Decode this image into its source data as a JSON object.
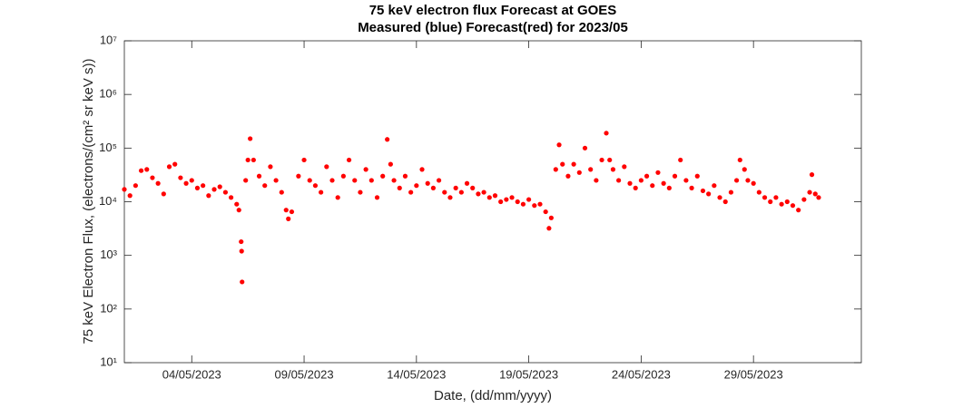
{
  "chart_data": {
    "type": "scatter",
    "title": "75 keV electron flux Forecast at GOES",
    "subtitle": "Measured (blue) Forecast(red) for 2023/05",
    "x_label": "Date, (dd/mm/yyyy)",
    "y_label": "75 keV Electron Flux, (electrons/(cm² sr keV s))",
    "color": "#ff0000",
    "log_y": true,
    "grid": false,
    "xlim": [
      1,
      33.8
    ],
    "xticks": [
      {
        "value": 4,
        "label": "04/05/2023"
      },
      {
        "value": 9,
        "label": "09/05/2023"
      },
      {
        "value": 14,
        "label": "14/05/2023"
      },
      {
        "value": 19,
        "label": "19/05/2023"
      },
      {
        "value": 24,
        "label": "24/05/2023"
      },
      {
        "value": 29,
        "label": "29/05/2023"
      }
    ],
    "ylim": [
      10,
      10000000
    ],
    "yticks": [
      {
        "value": 10,
        "label": "10¹"
      },
      {
        "value": 100,
        "label": "10²"
      },
      {
        "value": 1000,
        "label": "10³"
      },
      {
        "value": 10000,
        "label": "10⁴"
      },
      {
        "value": 100000,
        "label": "10⁵"
      },
      {
        "value": 1000000,
        "label": "10⁶"
      },
      {
        "value": 10000000,
        "label": "10⁷"
      }
    ],
    "x": [
      1.0,
      1.25,
      1.5,
      1.75,
      2.0,
      2.25,
      2.5,
      2.75,
      3.0,
      3.25,
      3.5,
      3.75,
      4.0,
      4.25,
      4.5,
      4.75,
      5.0,
      5.25,
      5.5,
      5.75,
      6.0,
      6.1,
      6.2,
      6.22,
      6.24,
      6.4,
      6.5,
      6.6,
      6.75,
      7.0,
      7.25,
      7.5,
      7.75,
      8.0,
      8.2,
      8.3,
      8.45,
      8.75,
      9.0,
      9.25,
      9.5,
      9.75,
      10.0,
      10.25,
      10.5,
      10.75,
      11.0,
      11.25,
      11.5,
      11.75,
      12.0,
      12.25,
      12.5,
      12.7,
      12.85,
      13.0,
      13.25,
      13.5,
      13.75,
      14.0,
      14.25,
      14.5,
      14.75,
      15.0,
      15.25,
      15.5,
      15.75,
      16.0,
      16.25,
      16.5,
      16.75,
      17.0,
      17.25,
      17.5,
      17.75,
      18.0,
      18.25,
      18.5,
      18.75,
      19.0,
      19.25,
      19.5,
      19.75,
      19.9,
      20.0,
      20.2,
      20.35,
      20.5,
      20.75,
      21.0,
      21.25,
      21.5,
      21.75,
      22.0,
      22.25,
      22.45,
      22.6,
      22.75,
      23.0,
      23.25,
      23.5,
      23.75,
      24.0,
      24.25,
      24.5,
      24.75,
      25.0,
      25.25,
      25.5,
      25.75,
      26.0,
      26.25,
      26.5,
      26.75,
      27.0,
      27.25,
      27.5,
      27.75,
      28.0,
      28.25,
      28.4,
      28.6,
      28.75,
      29.0,
      29.25,
      29.5,
      29.75,
      30.0,
      30.25,
      30.5,
      30.75,
      31.0,
      31.25,
      31.5,
      31.6,
      31.75,
      31.9
    ],
    "values": [
      17000,
      13000,
      20000,
      38000,
      40000,
      28000,
      22000,
      14000,
      45000,
      50000,
      28000,
      22000,
      25000,
      18000,
      20000,
      13000,
      17000,
      19000,
      15000,
      12000,
      9000,
      7000,
      1800,
      1200,
      320,
      25000,
      60000,
      150000,
      60000,
      30000,
      20000,
      45000,
      25000,
      15000,
      7000,
      4800,
      6500,
      30000,
      60000,
      25000,
      20000,
      15000,
      45000,
      25000,
      12000,
      30000,
      60000,
      25000,
      15000,
      40000,
      25000,
      12000,
      30000,
      145000,
      50000,
      25000,
      18000,
      30000,
      15000,
      20000,
      40000,
      22000,
      18000,
      25000,
      15000,
      12000,
      18000,
      15000,
      22000,
      18000,
      14000,
      15000,
      12000,
      13000,
      10000,
      11000,
      12000,
      10000,
      9000,
      11000,
      8500,
      9000,
      6500,
      3200,
      5000,
      40000,
      115000,
      50000,
      30000,
      50000,
      35000,
      100000,
      40000,
      25000,
      60000,
      190000,
      60000,
      40000,
      25000,
      45000,
      22000,
      18000,
      25000,
      30000,
      20000,
      35000,
      22000,
      18000,
      30000,
      60000,
      25000,
      18000,
      30000,
      16000,
      14000,
      20000,
      12000,
      10000,
      15000,
      25000,
      60000,
      40000,
      25000,
      22000,
      15000,
      12000,
      10000,
      12000,
      9000,
      10000,
      8500,
      7000,
      11000,
      15000,
      32000,
      14000,
      12000
    ]
  }
}
